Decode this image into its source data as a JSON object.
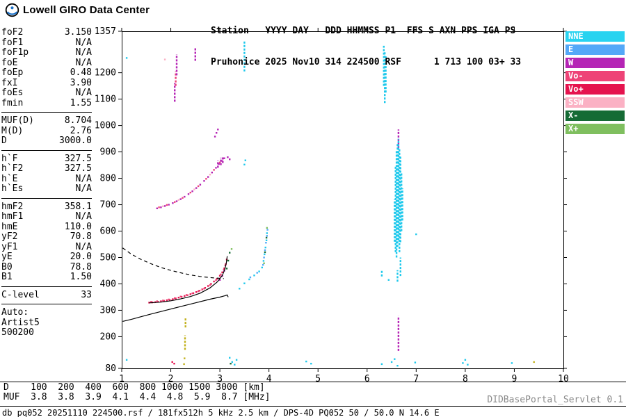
{
  "brand": {
    "logo_label": "Lowell GIRO Data Center"
  },
  "station_header": {
    "line1": "Station   YYYY DAY   DDD HHMMSS P1  FFS S AXN PPS IGA PS",
    "line2": "Pruhonice 2025 Nov10 314 224500 RSF      1 713 100 03+ 33"
  },
  "params": {
    "groups": [
      {
        "rows": [
          {
            "label": "foF2",
            "value": "3.150"
          },
          {
            "label": "foF1",
            "value": "N/A"
          },
          {
            "label": "foF1p",
            "value": "N/A"
          },
          {
            "label": "foE",
            "value": "N/A"
          },
          {
            "label": "foEp",
            "value": "0.48"
          },
          {
            "label": "fxI",
            "value": "3.90"
          },
          {
            "label": "foEs",
            "value": "N/A"
          },
          {
            "label": "fmin",
            "value": "1.55"
          }
        ]
      },
      {
        "rows": [
          {
            "label": "MUF(D)",
            "value": "8.704"
          },
          {
            "label": "M(D)",
            "value": "2.76"
          },
          {
            "label": "D",
            "value": "3000.0"
          }
        ]
      },
      {
        "rows": [
          {
            "label": "h`F",
            "value": "327.5"
          },
          {
            "label": "h`F2",
            "value": "327.5"
          },
          {
            "label": "h`E",
            "value": "N/A"
          },
          {
            "label": "h`Es",
            "value": "N/A"
          }
        ]
      },
      {
        "rows": [
          {
            "label": "hmF2",
            "value": "358.1"
          },
          {
            "label": "hmF1",
            "value": "N/A"
          },
          {
            "label": "hmE",
            "value": "110.0"
          },
          {
            "label": "yF2",
            "value": "70.8"
          },
          {
            "label": "yF1",
            "value": "N/A"
          },
          {
            "label": "yE",
            "value": "20.0"
          },
          {
            "label": "B0",
            "value": "78.8"
          },
          {
            "label": "B1",
            "value": "1.50"
          }
        ]
      },
      {
        "rows": [
          {
            "label": "C-level",
            "value": "33"
          }
        ]
      },
      {
        "rows": [
          {
            "label": "Auto:",
            "value": ""
          },
          {
            "label": "Artist5",
            "value": ""
          },
          {
            "label": "500200",
            "value": ""
          }
        ]
      }
    ]
  },
  "legend": [
    {
      "label": "NNE",
      "color": "#29d3f0"
    },
    {
      "label": "E",
      "color": "#54a8f8"
    },
    {
      "label": "W",
      "color": "#b525b5"
    },
    {
      "label": "Vo-",
      "color": "#ee4377"
    },
    {
      "label": "Vo+",
      "color": "#e5134e"
    },
    {
      "label": "SSW",
      "color": "#fbb1c4"
    },
    {
      "label": "X-",
      "color": "#156b35"
    },
    {
      "label": "X+",
      "color": "#7fbf5f"
    }
  ],
  "chart_data": {
    "type": "scatter",
    "title": "Pruhonice ionogram 2025 Nov10 224500",
    "xlabel": "[MHz]",
    "ylabel": "[km]",
    "xlim": [
      1,
      10
    ],
    "ylim": [
      80,
      1357
    ],
    "grid": false,
    "x_ticks": [
      1,
      2,
      3,
      4,
      5,
      6,
      7,
      8,
      9,
      10
    ],
    "y_ticks": [
      1357,
      1200,
      1100,
      1000,
      900,
      800,
      700,
      600,
      500,
      400,
      300,
      200,
      80
    ],
    "series": [
      {
        "name": "Vo+",
        "color": "#e5134e",
        "points": [
          [
            1.56,
            329
          ],
          [
            1.62,
            330
          ],
          [
            1.68,
            331
          ],
          [
            1.74,
            332
          ],
          [
            1.8,
            334
          ],
          [
            1.86,
            336
          ],
          [
            1.92,
            338
          ],
          [
            1.98,
            340
          ],
          [
            2.04,
            342
          ],
          [
            2.1,
            345
          ],
          [
            2.16,
            348
          ],
          [
            2.22,
            351
          ],
          [
            2.28,
            354
          ],
          [
            2.34,
            357
          ],
          [
            2.4,
            361
          ],
          [
            2.46,
            365
          ],
          [
            2.52,
            369
          ],
          [
            2.58,
            374
          ],
          [
            2.64,
            379
          ],
          [
            2.7,
            385
          ],
          [
            2.76,
            392
          ],
          [
            2.82,
            400
          ],
          [
            2.88,
            409
          ],
          [
            2.94,
            419
          ],
          [
            3.0,
            431
          ],
          [
            3.05,
            444
          ],
          [
            3.09,
            459
          ],
          [
            3.12,
            475
          ],
          [
            3.14,
            492
          ],
          [
            2.03,
            104
          ],
          [
            2.07,
            98
          ]
        ]
      },
      {
        "name": "Vo-",
        "color": "#ee4377",
        "points": [
          [
            1.6,
            332
          ],
          [
            1.72,
            334
          ],
          [
            1.84,
            337
          ],
          [
            1.96,
            341
          ],
          [
            2.08,
            346
          ],
          [
            2.2,
            352
          ],
          [
            2.32,
            358
          ],
          [
            2.44,
            364
          ],
          [
            2.56,
            372
          ],
          [
            2.68,
            382
          ],
          [
            2.8,
            396
          ],
          [
            2.92,
            414
          ],
          [
            3.02,
            436
          ],
          [
            3.08,
            454
          ],
          [
            3.11,
            470
          ],
          [
            1.76,
            690
          ],
          [
            1.92,
            699
          ],
          [
            2.08,
            710
          ],
          [
            2.24,
            726
          ],
          [
            2.4,
            746
          ],
          [
            2.56,
            770
          ],
          [
            2.72,
            798
          ],
          [
            2.88,
            832
          ],
          [
            3.0,
            860
          ]
        ],
        "streaks": [
          [
            2.1,
            1150,
            1205
          ]
        ]
      },
      {
        "name": "SSW",
        "color": "#fbb1c4",
        "points": [
          [
            1.66,
            330
          ],
          [
            2.0,
            340
          ],
          [
            2.36,
            358
          ],
          [
            2.62,
            376
          ],
          [
            1.84,
            694
          ],
          [
            2.16,
            718
          ],
          [
            2.48,
            758
          ],
          [
            2.8,
            814
          ],
          [
            1.88,
            1250
          ]
        ]
      },
      {
        "name": "W",
        "color": "#b525b5",
        "points": [
          [
            1.72,
            686
          ],
          [
            1.8,
            690
          ],
          [
            1.88,
            695
          ],
          [
            1.96,
            700
          ],
          [
            2.04,
            706
          ],
          [
            2.12,
            713
          ],
          [
            2.2,
            721
          ],
          [
            2.28,
            730
          ],
          [
            2.36,
            740
          ],
          [
            2.44,
            751
          ],
          [
            2.52,
            763
          ],
          [
            2.6,
            776
          ],
          [
            2.68,
            790
          ],
          [
            2.76,
            805
          ],
          [
            2.84,
            822
          ],
          [
            2.92,
            840
          ],
          [
            2.98,
            854
          ],
          [
            3.04,
            866
          ],
          [
            3.09,
            876
          ],
          [
            3.16,
            880
          ],
          [
            3.2,
            872
          ],
          [
            2.9,
            958
          ],
          [
            2.93,
            972
          ],
          [
            2.96,
            985
          ],
          [
            3.0,
            415
          ],
          [
            3.05,
            430
          ],
          [
            3.09,
            450
          ]
        ],
        "streaks": [
          [
            2.96,
            840,
            868
          ],
          [
            3.02,
            850,
            878
          ],
          [
            3.06,
            858,
            884
          ],
          [
            2.08,
            1090,
            1160
          ],
          [
            2.12,
            1190,
            1270
          ],
          [
            2.5,
            1245,
            1295
          ],
          [
            6.64,
            146,
            278
          ],
          [
            6.64,
            915,
            985
          ]
        ]
      },
      {
        "name": "NNE",
        "color": "#1fc9ec",
        "points": [
          [
            1.1,
            112
          ],
          [
            1.1,
            1256
          ],
          [
            3.2,
            120
          ],
          [
            3.25,
            104
          ],
          [
            3.3,
            94
          ],
          [
            3.34,
            112
          ],
          [
            3.4,
            382
          ],
          [
            3.5,
            402
          ],
          [
            3.6,
            417
          ],
          [
            3.7,
            432
          ],
          [
            3.8,
            447
          ],
          [
            3.86,
            462
          ],
          [
            3.89,
            487
          ],
          [
            3.91,
            512
          ],
          [
            3.93,
            538
          ],
          [
            3.95,
            565
          ],
          [
            3.96,
            592
          ],
          [
            4.76,
            106
          ],
          [
            4.86,
            98
          ],
          [
            6.3,
            96
          ],
          [
            6.5,
            104
          ],
          [
            6.56,
            115
          ],
          [
            6.62,
            90
          ],
          [
            6.98,
            102
          ],
          [
            7.95,
            100
          ],
          [
            8.05,
            94
          ],
          [
            8.0,
            112
          ],
          [
            8.95,
            100
          ],
          [
            3.5,
            852
          ],
          [
            3.52,
            868
          ],
          [
            7.0,
            588
          ],
          [
            6.44,
            415
          ]
        ],
        "streaks": [
          [
            6.56,
            560,
            720
          ],
          [
            6.58,
            520,
            845
          ],
          [
            6.6,
            500,
            905
          ],
          [
            6.62,
            540,
            930
          ],
          [
            6.64,
            565,
            950
          ],
          [
            6.66,
            520,
            912
          ],
          [
            6.68,
            558,
            882
          ],
          [
            6.7,
            600,
            822
          ],
          [
            6.72,
            640,
            762
          ],
          [
            6.34,
            1150,
            1302
          ],
          [
            6.36,
            1085,
            1282
          ],
          [
            6.38,
            1125,
            1262
          ],
          [
            3.5,
            1205,
            1318
          ],
          [
            6.62,
            408,
            452
          ],
          [
            6.3,
            428,
            452
          ],
          [
            6.68,
            430,
            500
          ]
        ]
      },
      {
        "name": "E",
        "color": "#54a8f8",
        "points": [
          [
            3.88,
            472
          ],
          [
            3.9,
            500
          ],
          [
            3.92,
            528
          ],
          [
            3.94,
            556
          ],
          [
            3.96,
            582
          ],
          [
            3.97,
            605
          ],
          [
            3.62,
            425
          ],
          [
            3.76,
            442
          ]
        ]
      },
      {
        "name": "X-",
        "color": "#156b35",
        "points": [
          [
            3.14,
            458
          ],
          [
            3.17,
            488
          ],
          [
            3.2,
            518
          ],
          [
            3.22,
            98
          ],
          [
            3.92,
            520
          ],
          [
            3.95,
            575
          ]
        ]
      },
      {
        "name": "X+",
        "color": "#7fbf5f",
        "points": [
          [
            3.24,
            532
          ],
          [
            3.9,
            478
          ],
          [
            3.96,
            612
          ]
        ]
      },
      {
        "name": "unassigned-yellow",
        "color": "#c2b11c",
        "points": [
          [
            2.27,
            96
          ],
          [
            2.28,
            118
          ],
          [
            9.4,
            104
          ]
        ],
        "streaks": [
          [
            2.29,
            150,
            205
          ],
          [
            2.3,
            235,
            272
          ]
        ]
      }
    ],
    "overlays": [
      {
        "name": "transmission-curve",
        "style": "dashed",
        "points": [
          [
            1.02,
            536
          ],
          [
            1.2,
            512
          ],
          [
            1.4,
            492
          ],
          [
            1.6,
            476
          ],
          [
            1.8,
            462
          ],
          [
            2.0,
            451
          ],
          [
            2.2,
            442
          ],
          [
            2.4,
            434
          ],
          [
            2.6,
            428
          ],
          [
            2.8,
            424
          ],
          [
            3.0,
            421
          ],
          [
            3.08,
            420
          ]
        ]
      },
      {
        "name": "o-trace-fit",
        "style": "solid",
        "points": [
          [
            1.56,
            328
          ],
          [
            1.8,
            331
          ],
          [
            2.0,
            336
          ],
          [
            2.2,
            343
          ],
          [
            2.4,
            352
          ],
          [
            2.6,
            365
          ],
          [
            2.8,
            385
          ],
          [
            2.95,
            408
          ],
          [
            3.05,
            432
          ],
          [
            3.1,
            455
          ],
          [
            3.13,
            478
          ],
          [
            3.15,
            505
          ]
        ]
      },
      {
        "name": "electron-density-profile",
        "style": "solid",
        "points": [
          [
            1.02,
            258
          ],
          [
            1.2,
            266
          ],
          [
            1.4,
            276
          ],
          [
            1.6,
            286
          ],
          [
            1.9,
            300
          ],
          [
            2.2,
            314
          ],
          [
            2.5,
            328
          ],
          [
            2.8,
            342
          ],
          [
            3.0,
            350
          ],
          [
            3.1,
            355
          ],
          [
            3.15,
            358
          ],
          [
            3.17,
            350
          ]
        ]
      }
    ]
  },
  "footer": {
    "muf_table": {
      "d_label": "D",
      "distances": [
        "100",
        "200",
        "400",
        "600",
        "800",
        "1000",
        "1500",
        "3000"
      ],
      "d_unit": "[km]",
      "muf_label": "MUF",
      "muf_values": [
        "3.8",
        "3.8",
        "3.9",
        "4.1",
        "4.4",
        "4.8",
        "5.9",
        "8.7"
      ],
      "muf_unit": "[MHz]"
    },
    "info_line": "db pq052 20251110 224500.rsf / 181fx512h 5 kHz 2.5 km / DPS-4D PQ052 50 / 50.0 N 14.6 E",
    "servlet": "DIDBasePortal_Servlet 0.1"
  }
}
